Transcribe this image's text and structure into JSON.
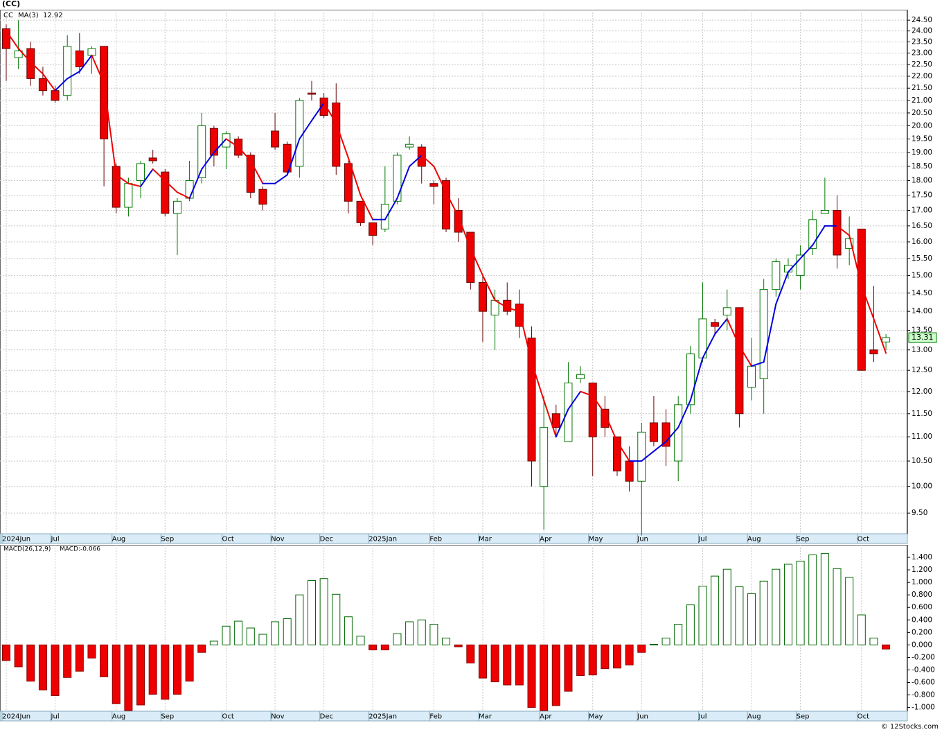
{
  "chart_data": [
    {
      "type": "candlestick",
      "title": "(CC)",
      "name": "CC",
      "categories": [
        "2024Jun",
        null,
        null,
        null,
        "Jul",
        null,
        null,
        null,
        null,
        "Aug",
        null,
        null,
        null,
        "Sep",
        null,
        null,
        null,
        null,
        "Oct",
        null,
        null,
        null,
        "Nov",
        null,
        null,
        null,
        "Dec",
        null,
        null,
        null,
        "2025Jan",
        null,
        null,
        null,
        null,
        "Feb",
        null,
        null,
        null,
        "Mar",
        null,
        null,
        null,
        null,
        "Apr",
        null,
        null,
        null,
        "May",
        null,
        null,
        null,
        "Jun",
        null,
        null,
        null,
        null,
        "Jul",
        null,
        null,
        null,
        "Aug",
        null,
        null,
        null,
        "Sep",
        null,
        null,
        null,
        null,
        "Oct",
        null,
        null
      ],
      "open": [
        24.1,
        22.8,
        23.2,
        21.9,
        21.4,
        21.2,
        23.1,
        22.9,
        23.3,
        18.5,
        17.1,
        18.0,
        18.8,
        18.3,
        16.9,
        17.4,
        18.1,
        19.9,
        19.2,
        19.5,
        18.9,
        17.7,
        19.8,
        19.3,
        18.5,
        21.3,
        21.1,
        20.9,
        18.6,
        17.3,
        16.6,
        16.4,
        17.3,
        19.2,
        19.2,
        17.9,
        18.0,
        17.0,
        16.3,
        14.8,
        13.9,
        14.3,
        14.2,
        13.3,
        10.0,
        11.5,
        10.9,
        12.3,
        12.2,
        11.6,
        11.0,
        10.5,
        10.1,
        11.3,
        11.3,
        10.5,
        11.7,
        12.8,
        13.7,
        13.9,
        14.1,
        12.1,
        12.3,
        14.6,
        15.1,
        15.0,
        15.8,
        16.9,
        17.0,
        15.8,
        16.4,
        13.0,
        13.2
      ],
      "high": [
        24.3,
        24.5,
        23.5,
        22.4,
        21.6,
        23.8,
        23.9,
        23.3,
        23.3,
        18.6,
        18.1,
        18.7,
        19.1,
        18.4,
        17.4,
        18.7,
        20.5,
        20.0,
        19.8,
        19.6,
        19.0,
        17.8,
        20.5,
        19.4,
        21.1,
        21.8,
        21.3,
        21.7,
        18.7,
        17.3,
        16.6,
        18.5,
        19.0,
        19.6,
        19.3,
        18.0,
        18.1,
        17.4,
        16.3,
        15.0,
        14.6,
        14.8,
        14.6,
        13.6,
        11.9,
        11.7,
        12.7,
        12.6,
        12.2,
        11.9,
        11.0,
        10.8,
        11.3,
        11.9,
        11.6,
        11.9,
        13.1,
        14.8,
        13.8,
        14.6,
        14.1,
        13.3,
        14.9,
        15.5,
        15.5,
        15.9,
        17.0,
        18.1,
        17.5,
        16.8,
        16.4,
        14.7,
        13.4
      ],
      "low": [
        21.8,
        22.3,
        21.6,
        21.2,
        20.9,
        21.0,
        22.1,
        22.1,
        17.8,
        16.9,
        16.8,
        17.4,
        18.6,
        16.8,
        15.6,
        17.3,
        17.9,
        18.5,
        18.4,
        18.8,
        17.4,
        17.0,
        19.1,
        18.2,
        18.1,
        21.0,
        20.3,
        18.2,
        16.9,
        16.5,
        15.9,
        16.3,
        17.2,
        19.1,
        17.9,
        17.2,
        16.3,
        16.0,
        14.6,
        13.2,
        13.0,
        13.9,
        13.3,
        10.0,
        9.2,
        11.0,
        10.9,
        12.2,
        10.2,
        11.0,
        10.2,
        9.9,
        9.1,
        10.8,
        10.4,
        10.1,
        11.5,
        12.7,
        13.4,
        13.5,
        11.2,
        11.8,
        11.5,
        14.4,
        14.9,
        14.6,
        15.6,
        16.9,
        15.2,
        15.3,
        12.5,
        12.7,
        13.0
      ],
      "close": [
        23.2,
        23.1,
        21.9,
        21.4,
        21.0,
        23.3,
        22.4,
        23.2,
        19.5,
        17.1,
        17.9,
        18.6,
        18.7,
        16.9,
        17.3,
        18.0,
        20.0,
        18.9,
        19.7,
        18.9,
        17.6,
        17.2,
        19.2,
        18.3,
        21.0,
        21.25,
        20.4,
        18.5,
        17.3,
        16.6,
        16.2,
        17.2,
        18.9,
        19.3,
        18.5,
        17.8,
        16.4,
        16.3,
        14.8,
        14.0,
        14.3,
        14.0,
        13.6,
        10.5,
        11.2,
        11.2,
        12.2,
        12.4,
        11.0,
        11.2,
        10.3,
        10.1,
        11.1,
        10.9,
        10.8,
        11.7,
        12.9,
        13.8,
        13.6,
        14.1,
        11.5,
        12.6,
        14.6,
        15.4,
        15.3,
        15.6,
        16.7,
        17.0,
        15.6,
        16.1,
        12.5,
        12.9,
        13.31
      ],
      "up_color": "#007700",
      "down_color": "#ee0000",
      "series": [
        {
          "name": "MA(3)",
          "color": "#0000dd",
          "down_color": "#ee0000",
          "values": [
            24.0,
            23.2,
            22.6,
            22.1,
            21.4,
            21.9,
            22.2,
            22.9,
            21.7,
            18.2,
            17.9,
            17.8,
            18.4,
            18.0,
            17.6,
            17.4,
            18.4,
            19.0,
            19.5,
            19.2,
            18.7,
            17.9,
            17.9,
            18.2,
            19.5,
            20.2,
            20.9,
            20.1,
            18.8,
            17.5,
            16.7,
            16.7,
            17.4,
            18.5,
            18.9,
            18.5,
            17.6,
            16.8,
            15.8,
            15.0,
            14.3,
            14.1,
            14.0,
            12.7,
            11.8,
            11.0,
            11.6,
            12.0,
            11.9,
            11.5,
            10.9,
            10.5,
            10.5,
            10.7,
            10.9,
            11.2,
            11.8,
            12.8,
            13.4,
            13.8,
            13.1,
            12.6,
            12.7,
            14.2,
            15.1,
            15.5,
            15.9,
            16.5,
            16.5,
            16.2,
            14.7,
            13.8,
            12.92
          ]
        }
      ],
      "ylim": [
        9.13,
        25
      ],
      "log": true,
      "grid": true,
      "yticks": [
        {
          "value": 24.5,
          "label": "24.50"
        },
        {
          "value": 24,
          "label": "24.00"
        },
        {
          "value": 23.5,
          "label": "23.50"
        },
        {
          "value": 23,
          "label": "23.00"
        },
        {
          "value": 22.5,
          "label": "22.50"
        },
        {
          "value": 22,
          "label": "22.00"
        },
        {
          "value": 21.5,
          "label": "21.50"
        },
        {
          "value": 21,
          "label": "21.00"
        },
        {
          "value": 20.5,
          "label": "20.50"
        },
        {
          "value": 20,
          "label": "20.00"
        },
        {
          "value": 19.5,
          "label": "19.50"
        },
        {
          "value": 19,
          "label": "19.00"
        },
        {
          "value": 18.5,
          "label": "18.50"
        },
        {
          "value": 18,
          "label": "18.00"
        },
        {
          "value": 17.5,
          "label": "17.50"
        },
        {
          "value": 17,
          "label": "17.00"
        },
        {
          "value": 16.5,
          "label": "16.50"
        },
        {
          "value": 16,
          "label": "16.00"
        },
        {
          "value": 15.5,
          "label": "15.50"
        },
        {
          "value": 15,
          "label": "15.00"
        },
        {
          "value": 14.5,
          "label": "14.50"
        },
        {
          "value": 14,
          "label": "14.00"
        },
        {
          "value": 13.5,
          "label": "13.50"
        },
        {
          "value": 13,
          "label": "13.00"
        },
        {
          "value": 12.5,
          "label": "12.50"
        },
        {
          "value": 12,
          "label": "12.00"
        },
        {
          "value": 11.5,
          "label": "11.50"
        },
        {
          "value": 11,
          "label": "11.00"
        },
        {
          "value": 10.5,
          "label": "10.50"
        },
        {
          "value": 10,
          "label": "10.00"
        },
        {
          "value": 9.5,
          "label": "9.50"
        }
      ]
    },
    {
      "type": "bar",
      "title": "MACD(26,12,9)",
      "legend_text": "MACD:-0.066",
      "categories": [
        "2024Jun",
        null,
        null,
        null,
        "Jul",
        null,
        null,
        null,
        null,
        "Aug",
        null,
        null,
        null,
        "Sep",
        null,
        null,
        null,
        null,
        "Oct",
        null,
        null,
        null,
        "Nov",
        null,
        null,
        null,
        "Dec",
        null,
        null,
        null,
        "2025Jan",
        null,
        null,
        null,
        null,
        "Feb",
        null,
        null,
        null,
        "Mar",
        null,
        null,
        null,
        null,
        "Apr",
        null,
        null,
        null,
        "May",
        null,
        null,
        null,
        "Jun",
        null,
        null,
        null,
        null,
        "Jul",
        null,
        null,
        null,
        "Aug",
        null,
        null,
        null,
        "Sep",
        null,
        null,
        null,
        null,
        "Oct",
        null,
        null
      ],
      "values": [
        -0.25,
        -0.35,
        -0.58,
        -0.72,
        -0.81,
        -0.52,
        -0.42,
        -0.21,
        -0.51,
        -0.94,
        -1.05,
        -0.96,
        -0.79,
        -0.87,
        -0.79,
        -0.58,
        -0.12,
        0.06,
        0.3,
        0.38,
        0.27,
        0.17,
        0.37,
        0.42,
        0.8,
        1.03,
        1.06,
        0.81,
        0.45,
        0.14,
        -0.08,
        -0.08,
        0.18,
        0.37,
        0.4,
        0.33,
        0.11,
        -0.03,
        -0.29,
        -0.53,
        -0.59,
        -0.64,
        -0.64,
        -1.0,
        -1.05,
        -0.97,
        -0.74,
        -0.49,
        -0.48,
        -0.38,
        -0.37,
        -0.32,
        -0.12,
        0.01,
        0.11,
        0.33,
        0.64,
        0.94,
        1.1,
        1.21,
        0.93,
        0.82,
        1.02,
        1.21,
        1.29,
        1.34,
        1.44,
        1.46,
        1.22,
        1.08,
        0.48,
        0.11,
        -0.066
      ],
      "up_color": "#006600",
      "down_color": "#ee0000",
      "ylim": [
        -1.06,
        1.6
      ],
      "grid": false,
      "yticks": [
        {
          "value": 1.4,
          "label": "1.400"
        },
        {
          "value": 1.2,
          "label": "1.200"
        },
        {
          "value": 1,
          "label": "1.000"
        },
        {
          "value": 0.8,
          "label": "0.800"
        },
        {
          "value": 0.6,
          "label": "0.600"
        },
        {
          "value": 0.4,
          "label": "0.400"
        },
        {
          "value": 0.2,
          "label": "0.200"
        },
        {
          "value": 0,
          "label": "0.000"
        },
        {
          "value": -0.2,
          "label": "-0.200"
        },
        {
          "value": -0.4,
          "label": "-0.400"
        },
        {
          "value": -0.6,
          "label": "-0.600"
        },
        {
          "value": -0.8,
          "label": "-0.800"
        },
        {
          "value": -1,
          "label": "-1.000"
        }
      ]
    }
  ],
  "footer": "© 12Stocks.com"
}
